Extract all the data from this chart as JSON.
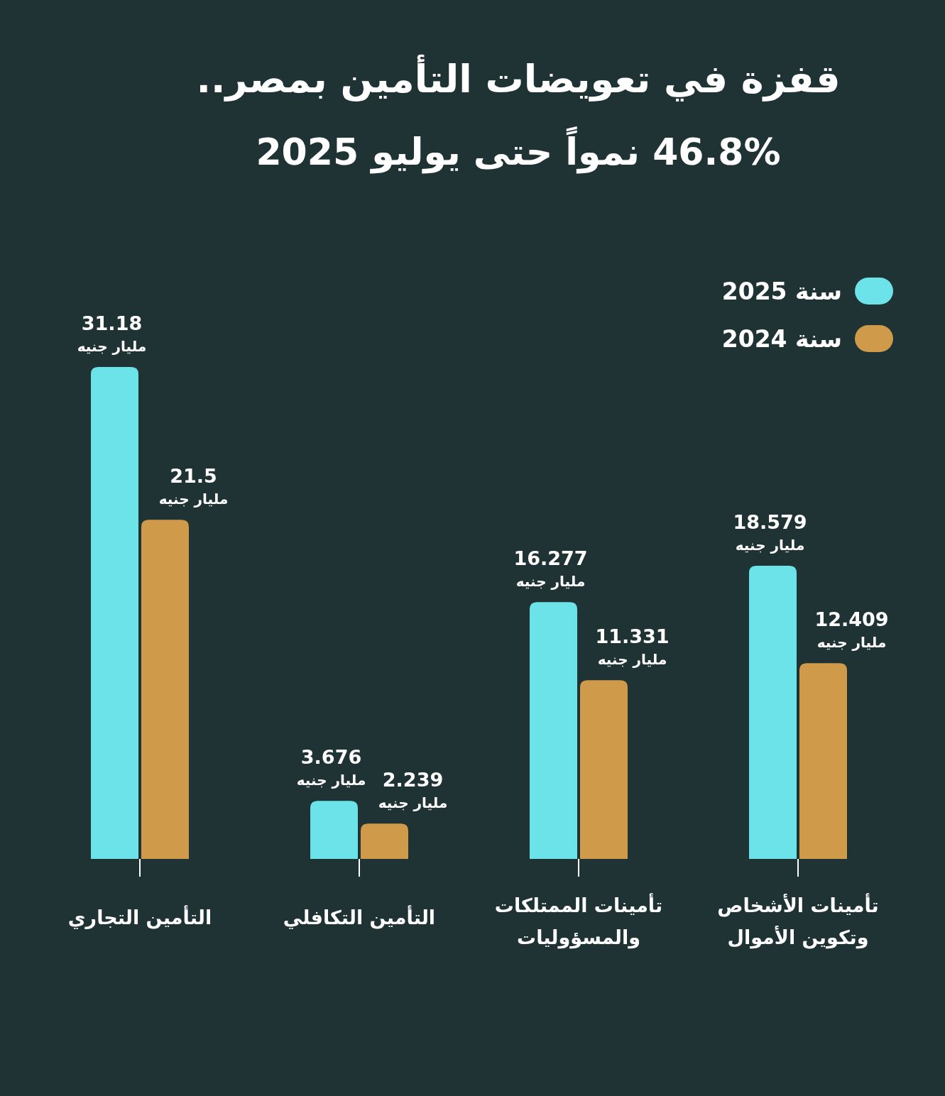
{
  "chart_data": {
    "type": "bar",
    "title": "قفزة في تعويضات التأمين بمصر..",
    "subtitle": "46.8% نمواً حتى يوليو 2025",
    "categories": [
      "التأمين التجاري",
      "التأمين التكافلي",
      "تأمينات الممتلكات والمسؤوليات",
      "تأمينات الأشخاص وتكوين الأموال"
    ],
    "legend": "top right",
    "series": [
      {
        "name": "سنة 2025",
        "color": "#6ce3e8",
        "values": [
          31.18,
          3.676,
          16.277,
          18.579
        ],
        "value_labels": [
          "31.18 مليار جنيه",
          "3.676 مليار جنيه",
          "16.277 مليار جنيه",
          "18.579 مليار جنيه"
        ]
      },
      {
        "name": "سنة 2024",
        "color": "#cf9a4a",
        "values": [
          21.5,
          2.239,
          11.331,
          12.409
        ],
        "value_labels": [
          "21.5 مليار جنيه",
          "2.239 مليار جنيه",
          "11.331 مليار جنيه",
          "12.409 مليار جنيه"
        ]
      }
    ]
  }
}
